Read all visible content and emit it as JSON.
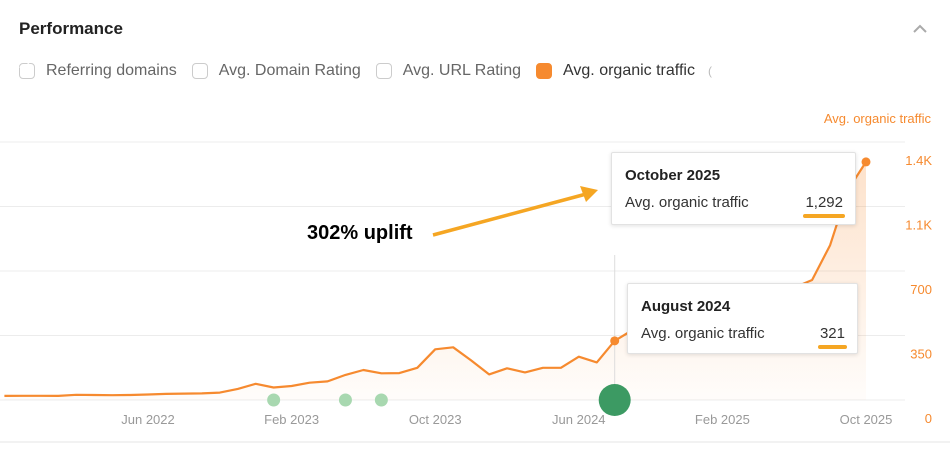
{
  "header": {
    "title": "Performance",
    "collapse_icon": "chevron-up-icon"
  },
  "metrics": [
    {
      "label": "Referring domains",
      "checked": false
    },
    {
      "label": "Avg. Domain Rating",
      "checked": false
    },
    {
      "label": "Avg. URL Rating",
      "checked": false
    },
    {
      "label": "Avg. organic traffic",
      "checked": true
    }
  ],
  "colors": {
    "series": "#f68a2f",
    "annotation_arrow": "#f5a623",
    "event_marker": "#3c9a63",
    "event_marker_light": "#a8d8b0"
  },
  "chart_data": {
    "type": "area",
    "ylabel": "Avg. organic traffic",
    "y_axis_position": "right",
    "ylim": [
      0,
      1400
    ],
    "yticks": [
      0,
      350,
      700,
      1100,
      1400
    ],
    "ytick_labels": [
      "0",
      "350",
      "700",
      "1.1K",
      "1.4K"
    ],
    "xtick_labels": [
      "Jun 2022",
      "Feb 2023",
      "Oct 2023",
      "Jun 2024",
      "Feb 2025",
      "Oct 2025"
    ],
    "x_start": "Oct 2021",
    "x_end": "Oct 2025",
    "grid": true,
    "series": [
      {
        "values": [
          22,
          23,
          23,
          22,
          28,
          27,
          26,
          27,
          30,
          33,
          35,
          36,
          40,
          60,
          88,
          68,
          76,
          94,
          101,
          136,
          163,
          145,
          146,
          175,
          275,
          286,
          215,
          139,
          172,
          150,
          175,
          175,
          235,
          204,
          321,
          380,
          400,
          420,
          440,
          460,
          490,
          520,
          550,
          580,
          610,
          651,
          840,
          1140,
          1292
        ]
      }
    ],
    "event_markers": [
      {
        "month": "Jan 2023",
        "major": false
      },
      {
        "month": "May 2023",
        "major": false
      },
      {
        "month": "Jul 2023",
        "major": false
      },
      {
        "month": "Aug 2024",
        "major": true
      }
    ],
    "annotation": "302% uplift",
    "tooltips": [
      {
        "date": "October 2025",
        "metric": "Avg. organic traffic",
        "value": "1,292"
      },
      {
        "date": "August 2024",
        "metric": "Avg. organic traffic",
        "value": "321"
      }
    ]
  }
}
